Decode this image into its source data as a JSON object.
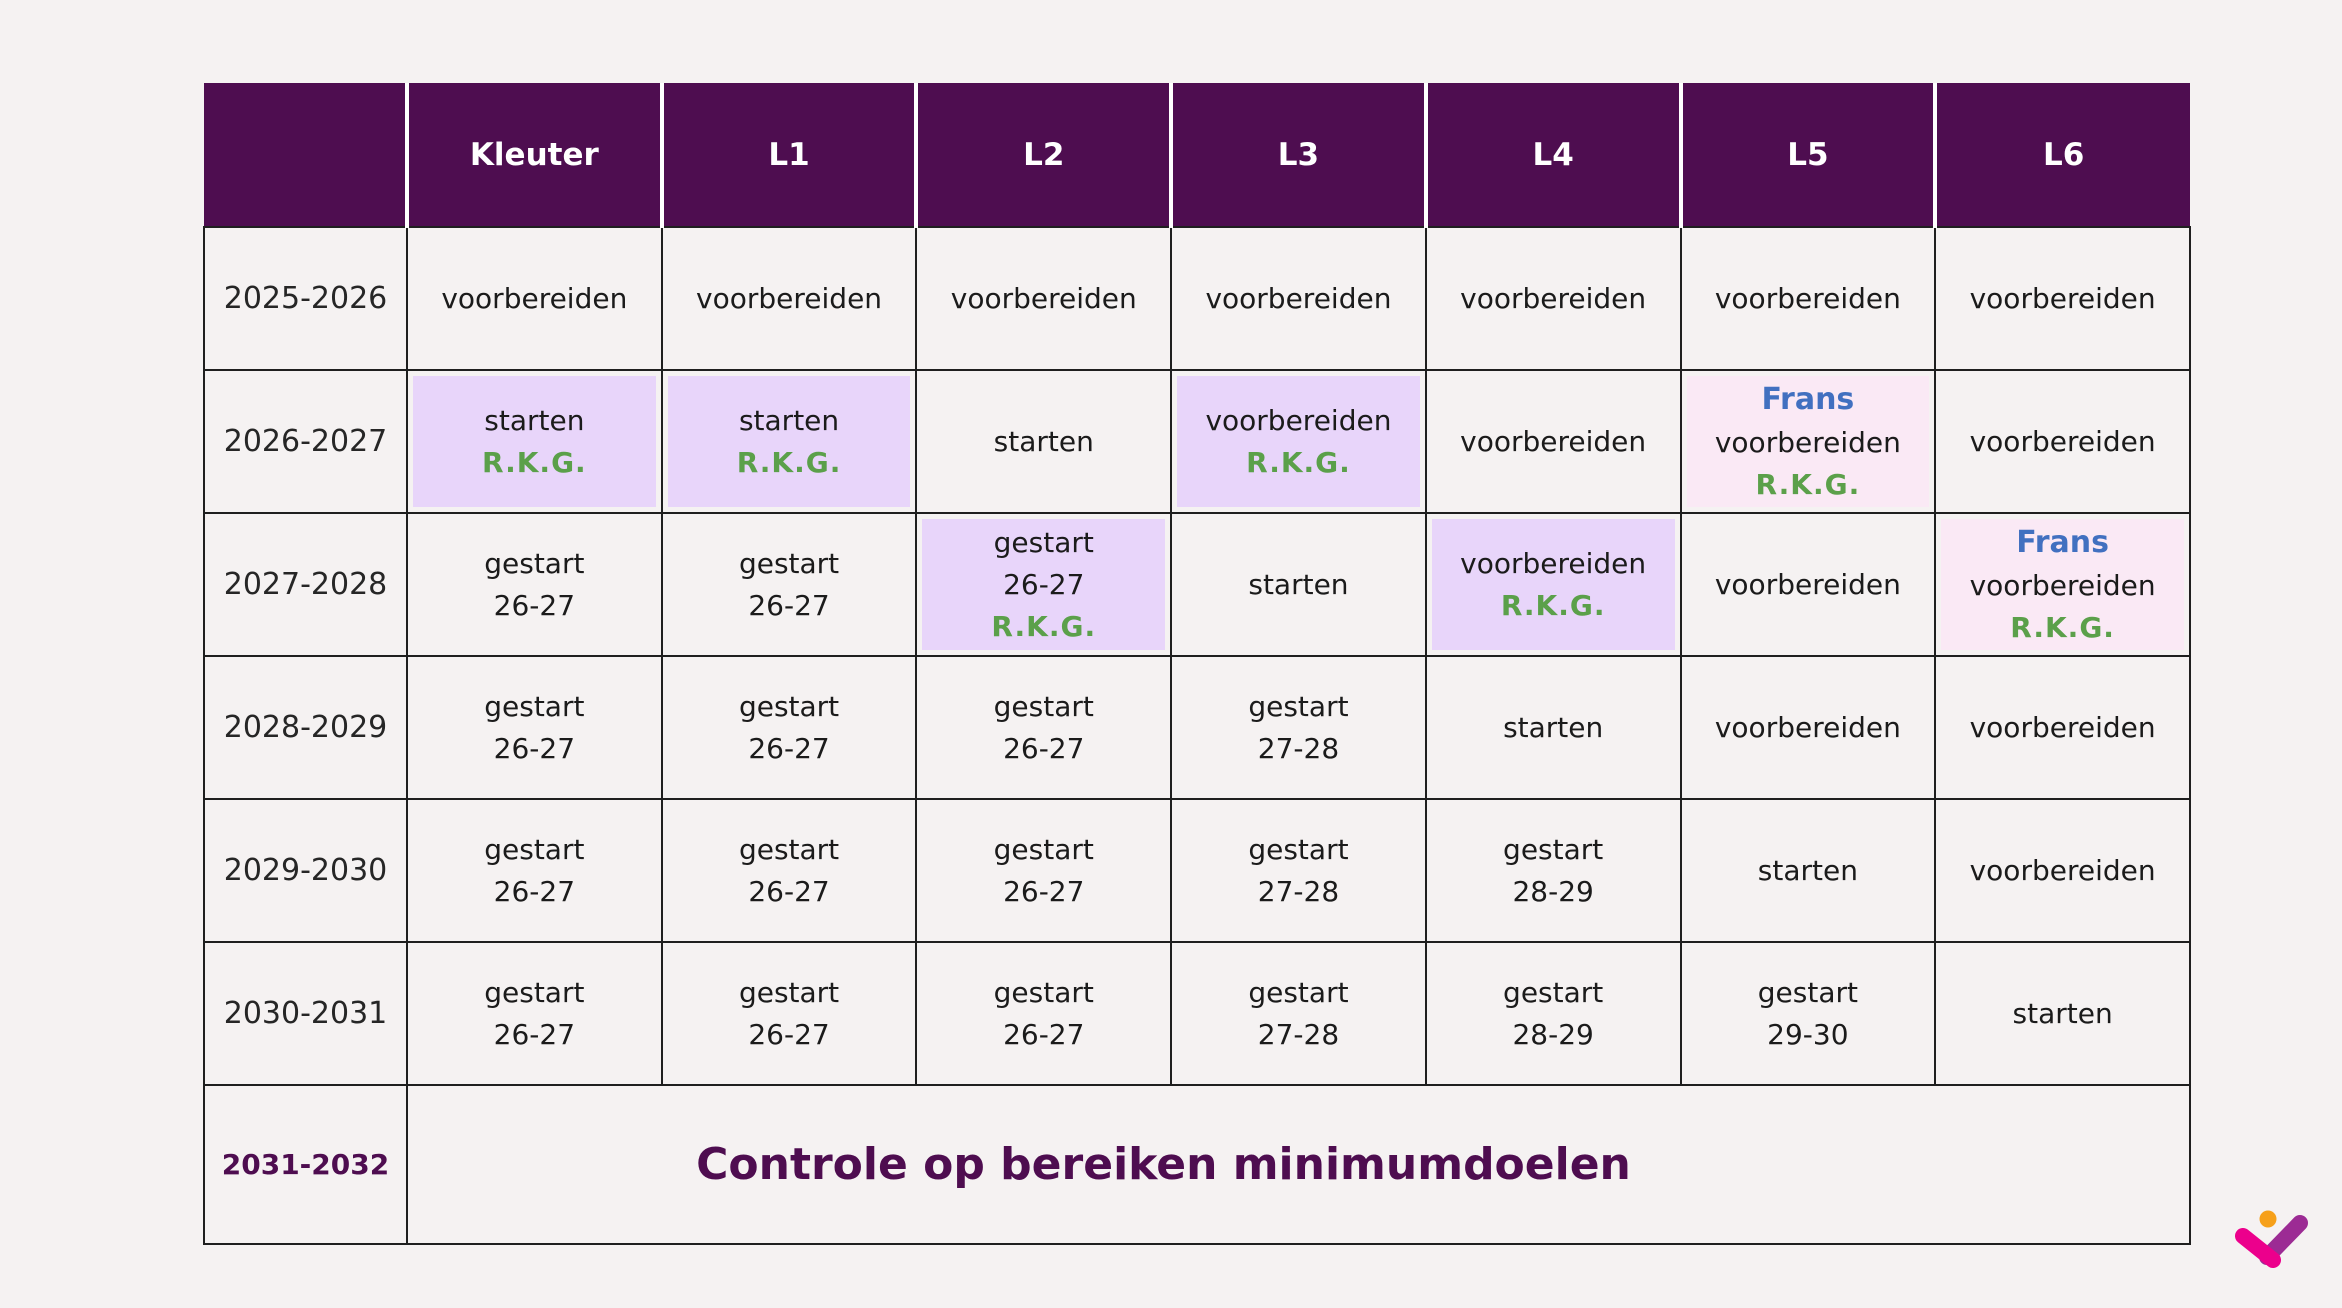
{
  "colors": {
    "page_bg": "#f5f2f2",
    "header_bg": "#4e0d50",
    "border_color": "#1f1f1f",
    "purple_fill": "#e8d5fa",
    "pink_fill": "#fae9f5",
    "green_text": "#5ba04a",
    "blue_text": "#4170c0",
    "accent_text": "#4e0d50",
    "logo_pink": "#ec008c",
    "logo_purple": "#9c2b94",
    "logo_orange": "#f6a01a"
  },
  "table": {
    "columns": [
      "",
      "Kleuter",
      "L1",
      "L2",
      "L3",
      "L4",
      "L5",
      "L6"
    ],
    "rows": [
      {
        "year": "2025-2026",
        "cells": [
          {
            "lines": [
              {
                "text": "voorbereiden"
              }
            ]
          },
          {
            "lines": [
              {
                "text": "voorbereiden"
              }
            ]
          },
          {
            "lines": [
              {
                "text": "voorbereiden"
              }
            ]
          },
          {
            "lines": [
              {
                "text": "voorbereiden"
              }
            ]
          },
          {
            "lines": [
              {
                "text": "voorbereiden"
              }
            ]
          },
          {
            "lines": [
              {
                "text": "voorbereiden"
              }
            ]
          },
          {
            "lines": [
              {
                "text": "voorbereiden"
              }
            ]
          }
        ]
      },
      {
        "year": "2026-2027",
        "cells": [
          {
            "fill": "purple",
            "lines": [
              {
                "text": "starten"
              },
              {
                "text": "R.K.G.",
                "style": "green"
              }
            ]
          },
          {
            "fill": "purple",
            "lines": [
              {
                "text": "starten"
              },
              {
                "text": "R.K.G.",
                "style": "green"
              }
            ]
          },
          {
            "lines": [
              {
                "text": "starten"
              }
            ]
          },
          {
            "fill": "purple",
            "lines": [
              {
                "text": "voorbereiden"
              },
              {
                "text": "R.K.G.",
                "style": "green"
              }
            ]
          },
          {
            "lines": [
              {
                "text": "voorbereiden"
              }
            ]
          },
          {
            "fill": "pink",
            "lines": [
              {
                "text": "Frans",
                "style": "blue"
              },
              {
                "text": "voorbereiden"
              },
              {
                "text": "R.K.G.",
                "style": "green"
              }
            ]
          },
          {
            "lines": [
              {
                "text": "voorbereiden"
              }
            ]
          }
        ]
      },
      {
        "year": "2027-2028",
        "cells": [
          {
            "lines": [
              {
                "text": "gestart"
              },
              {
                "text": "26-27"
              }
            ]
          },
          {
            "lines": [
              {
                "text": "gestart"
              },
              {
                "text": "26-27"
              }
            ]
          },
          {
            "fill": "purple",
            "lines": [
              {
                "text": "gestart"
              },
              {
                "text": "26-27"
              },
              {
                "text": "R.K.G.",
                "style": "green"
              }
            ]
          },
          {
            "lines": [
              {
                "text": "starten"
              }
            ]
          },
          {
            "fill": "purple",
            "lines": [
              {
                "text": "voorbereiden"
              },
              {
                "text": "R.K.G.",
                "style": "green"
              }
            ]
          },
          {
            "lines": [
              {
                "text": "voorbereiden"
              }
            ]
          },
          {
            "fill": "pink",
            "lines": [
              {
                "text": "Frans",
                "style": "blue"
              },
              {
                "text": "voorbereiden"
              },
              {
                "text": "R.K.G.",
                "style": "green"
              }
            ]
          }
        ]
      },
      {
        "year": "2028-2029",
        "cells": [
          {
            "lines": [
              {
                "text": "gestart"
              },
              {
                "text": "26-27"
              }
            ]
          },
          {
            "lines": [
              {
                "text": "gestart"
              },
              {
                "text": "26-27"
              }
            ]
          },
          {
            "lines": [
              {
                "text": "gestart"
              },
              {
                "text": "26-27"
              }
            ]
          },
          {
            "lines": [
              {
                "text": "gestart"
              },
              {
                "text": "27-28"
              }
            ]
          },
          {
            "lines": [
              {
                "text": "starten"
              }
            ]
          },
          {
            "lines": [
              {
                "text": "voorbereiden"
              }
            ]
          },
          {
            "lines": [
              {
                "text": "voorbereiden"
              }
            ]
          }
        ]
      },
      {
        "year": "2029-2030",
        "cells": [
          {
            "lines": [
              {
                "text": "gestart"
              },
              {
                "text": "26-27"
              }
            ]
          },
          {
            "lines": [
              {
                "text": "gestart"
              },
              {
                "text": "26-27"
              }
            ]
          },
          {
            "lines": [
              {
                "text": "gestart"
              },
              {
                "text": "26-27"
              }
            ]
          },
          {
            "lines": [
              {
                "text": "gestart"
              },
              {
                "text": "27-28"
              }
            ]
          },
          {
            "lines": [
              {
                "text": "gestart"
              },
              {
                "text": "28-29"
              }
            ]
          },
          {
            "lines": [
              {
                "text": "starten"
              }
            ]
          },
          {
            "lines": [
              {
                "text": "voorbereiden"
              }
            ]
          }
        ]
      },
      {
        "year": "2030-2031",
        "cells": [
          {
            "lines": [
              {
                "text": "gestart"
              },
              {
                "text": "26-27"
              }
            ]
          },
          {
            "lines": [
              {
                "text": "gestart"
              },
              {
                "text": "26-27"
              }
            ]
          },
          {
            "lines": [
              {
                "text": "gestart"
              },
              {
                "text": "26-27"
              }
            ]
          },
          {
            "lines": [
              {
                "text": "gestart"
              },
              {
                "text": "27-28"
              }
            ]
          },
          {
            "lines": [
              {
                "text": "gestart"
              },
              {
                "text": "28-29"
              }
            ]
          },
          {
            "lines": [
              {
                "text": "gestart"
              },
              {
                "text": "29-30"
              }
            ]
          },
          {
            "lines": [
              {
                "text": "starten"
              }
            ]
          }
        ]
      }
    ],
    "footer_row": {
      "year": "2031-2032",
      "label": "Controle op bereiken minimumdoelen"
    }
  },
  "logo": {
    "name": "check-figure-logo"
  }
}
